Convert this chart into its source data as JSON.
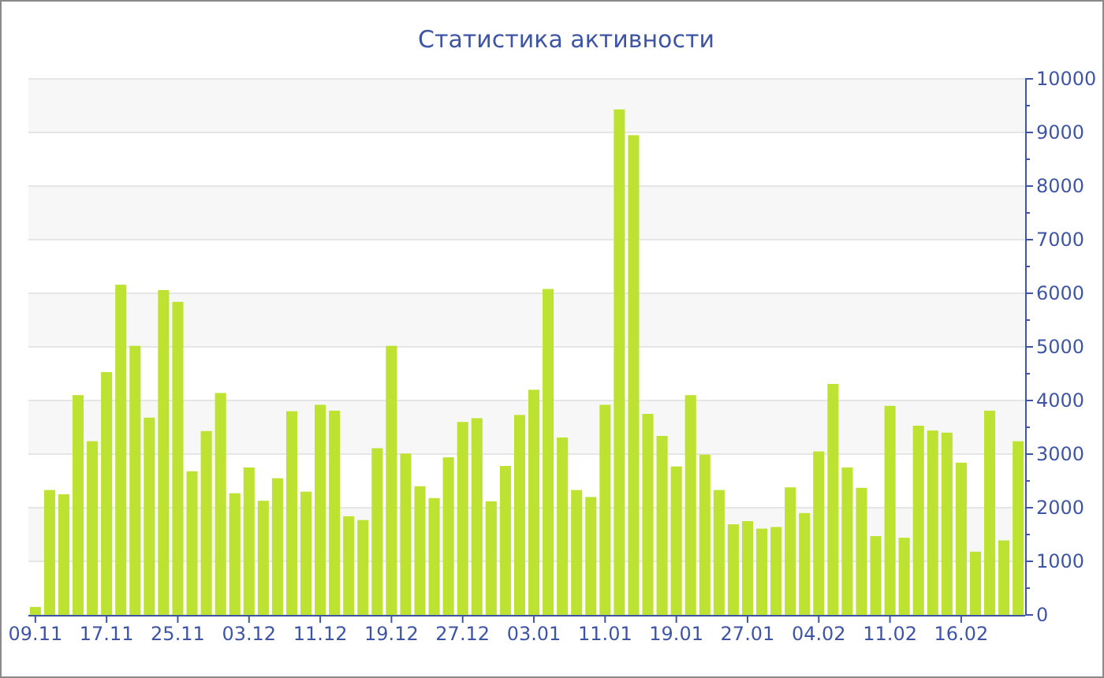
{
  "chart_data": {
    "type": "bar",
    "title": "Статистика активности",
    "categories": [
      "09.11",
      null,
      null,
      null,
      null,
      "17.11",
      null,
      null,
      null,
      null,
      "25.11",
      null,
      null,
      null,
      null,
      "03.12",
      null,
      null,
      null,
      null,
      "11.12",
      null,
      null,
      null,
      null,
      "19.12",
      null,
      null,
      null,
      null,
      "27.12",
      null,
      null,
      null,
      null,
      "03.01",
      null,
      null,
      null,
      null,
      "11.01",
      null,
      null,
      null,
      null,
      "19.01",
      null,
      null,
      null,
      null,
      "27.01",
      null,
      null,
      null,
      null,
      "04.02",
      null,
      null,
      null,
      null,
      "11.02",
      null,
      null,
      null,
      null,
      "16.02",
      null,
      null,
      null,
      null
    ],
    "values": [
      150,
      2330,
      2250,
      4100,
      3240,
      4530,
      6160,
      5020,
      3680,
      6060,
      5840,
      2680,
      3430,
      4140,
      2270,
      2750,
      2130,
      2550,
      3800,
      2300,
      3920,
      3810,
      1840,
      1770,
      3110,
      5020,
      3010,
      2400,
      2180,
      2940,
      3600,
      3670,
      2120,
      2780,
      3730,
      4200,
      6080,
      3310,
      2330,
      2200,
      3920,
      9430,
      8950,
      3750,
      3340,
      2770,
      4100,
      2990,
      2330,
      1690,
      1750,
      1610,
      1640,
      2380,
      1900,
      3050,
      4310,
      2750,
      2370,
      1470,
      3900,
      1440,
      3530,
      3440,
      3400,
      2840,
      1180,
      3810,
      1390,
      3240
    ],
    "color": "#bde232",
    "ylim": [
      0,
      10000
    ],
    "yticks": [
      0,
      1000,
      2000,
      3000,
      4000,
      5000,
      6000,
      7000,
      8000,
      9000,
      10000
    ],
    "grid": "y"
  }
}
